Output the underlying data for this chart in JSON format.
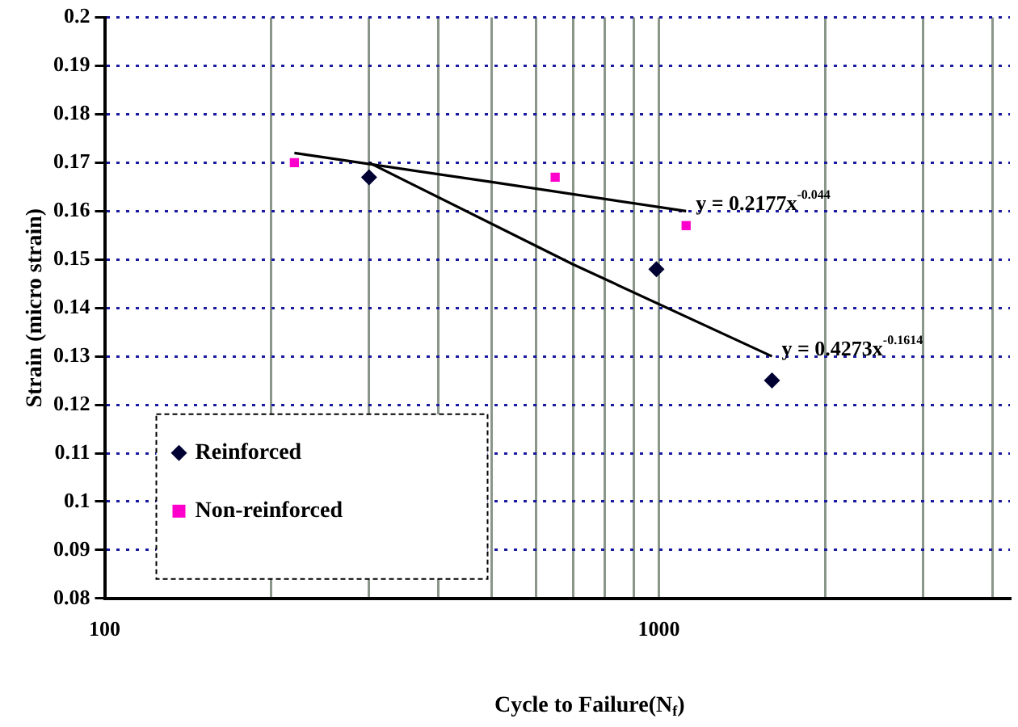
{
  "chart_data": {
    "type": "scatter",
    "xlabel": "Cycle to Failure(N$_{f}$)",
    "ylabel": "Strain (micro strain)",
    "log": "x",
    "grid": true,
    "legend": "bottom left",
    "xlim": [
      100,
      4300
    ],
    "ylim": [
      0.08,
      0.2
    ],
    "xticks": [
      100,
      {
        "value": 200,
        "label": null
      },
      {
        "value": 300,
        "label": null
      },
      {
        "value": 400,
        "label": null
      },
      {
        "value": 500,
        "label": null
      },
      {
        "value": 600,
        "label": null
      },
      {
        "value": 700,
        "label": null
      },
      {
        "value": 800,
        "label": null
      },
      {
        "value": 900,
        "label": null
      },
      1000,
      {
        "value": 2000,
        "label": null
      },
      {
        "value": 3000,
        "label": null
      },
      {
        "value": 4000,
        "label": null
      }
    ],
    "yticks": [
      0.08,
      0.09,
      0.1,
      0.11,
      0.12,
      0.13,
      0.14,
      0.15,
      0.16,
      0.17,
      0.18,
      0.19,
      0.2
    ],
    "series": [
      {
        "name": "Reinforced",
        "marker": "diamond",
        "color": "#000033",
        "x": [
          300,
          990,
          1600
        ],
        "values": [
          0.167,
          0.148,
          0.125
        ]
      },
      {
        "name": "Non-reinforced",
        "marker": "square",
        "color": "#ff00cc",
        "x": [
          220,
          650,
          1120
        ],
        "values": [
          0.17,
          0.167,
          0.157
        ]
      },
      {
        "type": "line",
        "marker": "none",
        "line_style": "solid",
        "color": "#000000",
        "x": [
          220,
          500,
          1120
        ],
        "values": [
          0.172,
          0.166,
          0.16
        ]
      },
      {
        "type": "line",
        "marker": "none",
        "line_style": "solid",
        "color": "#000000",
        "x": [
          300,
          700,
          1600
        ],
        "values": [
          0.17,
          0.149,
          0.13
        ]
      }
    ],
    "annotations": [
      {
        "text": "y = 0.2177x$^{-0.044}$",
        "x": 1120,
        "y": 0.16
      },
      {
        "text": "y = 0.4273x$^{-0.1614}$",
        "x": 1600,
        "y": 0.13
      }
    ]
  }
}
